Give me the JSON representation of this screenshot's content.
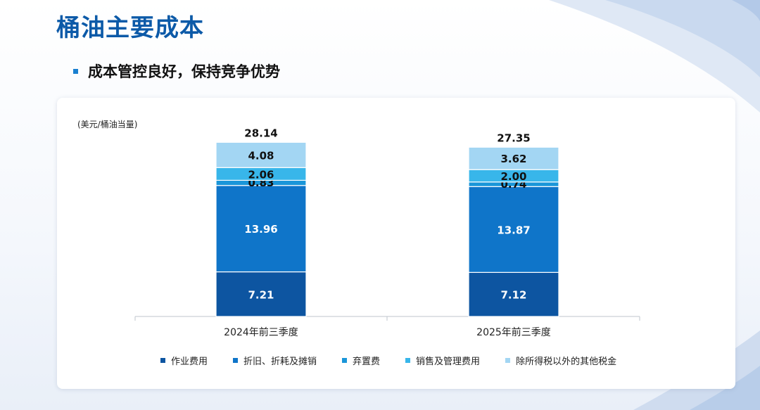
{
  "page": {
    "title": "桶油主要成本",
    "subtitle": "成本管控良好，保持竞争优势"
  },
  "chart_data": {
    "type": "bar",
    "stacked": true,
    "ylabel": "(美元/桶油当量)",
    "categories": [
      "2024年前三季度",
      "2025年前三季度"
    ],
    "series": [
      {
        "name": "作业费用",
        "color": "#0d55a1",
        "values": [
          7.21,
          7.12
        ]
      },
      {
        "name": "折旧、折耗及摊销",
        "color": "#0f75c9",
        "values": [
          13.96,
          13.87
        ]
      },
      {
        "name": "弃置费",
        "color": "#1a96d9",
        "values": [
          0.83,
          0.74
        ]
      },
      {
        "name": "销售及管理费用",
        "color": "#38b6ea",
        "values": [
          2.06,
          2.0
        ]
      },
      {
        "name": "除所得税以外的其他税金",
        "color": "#a3d6f3",
        "values": [
          4.08,
          3.62
        ]
      }
    ],
    "totals": [
      28.14,
      27.35
    ],
    "total_labels": [
      "28.14",
      "27.35"
    ],
    "value_labels": [
      [
        "7.21",
        "13.96",
        "0.83",
        "2.06",
        "4.08"
      ],
      [
        "7.12",
        "13.87",
        "0.74",
        "2.00",
        "3.62"
      ]
    ],
    "legend": "bottom",
    "grid": false
  }
}
